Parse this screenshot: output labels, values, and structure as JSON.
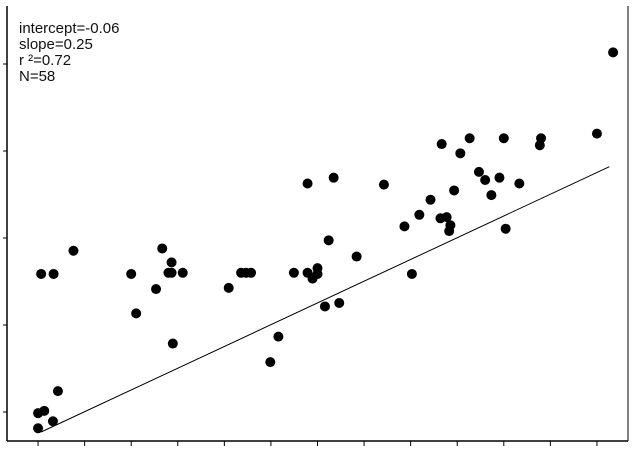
{
  "chart_data": {
    "type": "scatter",
    "title": "",
    "xlabel": "",
    "ylabel": "",
    "xlim": [
      0,
      10
    ],
    "ylim": [
      0,
      3.75
    ],
    "grid": false,
    "annotations": {
      "intercept": "intercept=-0.06",
      "slope": "slope=0.25",
      "r2": "r ²=0.72",
      "n": "N=58"
    },
    "fit": {
      "intercept": -0.06,
      "slope": 0.25,
      "x_range": [
        0.55,
        9.7
      ]
    },
    "points": [
      [
        0.75,
        1.44
      ],
      [
        1.07,
        1.64
      ],
      [
        0.6,
        0.26
      ],
      [
        0.5,
        0.11
      ],
      [
        0.5,
        0.24
      ],
      [
        0.74,
        0.17
      ],
      [
        0.82,
        0.43
      ],
      [
        0.55,
        1.44
      ],
      [
        2.0,
        1.44
      ],
      [
        2.08,
        1.1
      ],
      [
        2.4,
        1.31
      ],
      [
        2.5,
        1.66
      ],
      [
        2.6,
        1.45
      ],
      [
        2.65,
        1.54
      ],
      [
        2.65,
        1.45
      ],
      [
        2.83,
        1.45
      ],
      [
        2.67,
        0.84
      ],
      [
        3.57,
        1.32
      ],
      [
        3.77,
        1.45
      ],
      [
        3.85,
        1.45
      ],
      [
        3.93,
        1.45
      ],
      [
        4.24,
        0.68
      ],
      [
        4.37,
        0.9
      ],
      [
        4.62,
        1.45
      ],
      [
        4.84,
        1.45
      ],
      [
        4.92,
        1.4
      ],
      [
        5.0,
        1.44
      ],
      [
        5.12,
        1.16
      ],
      [
        5.0,
        1.49
      ],
      [
        5.18,
        1.73
      ],
      [
        5.35,
        1.19
      ],
      [
        5.63,
        1.59
      ],
      [
        4.84,
        2.22
      ],
      [
        5.26,
        2.27
      ],
      [
        6.07,
        2.21
      ],
      [
        6.4,
        1.85
      ],
      [
        6.64,
        1.95
      ],
      [
        6.52,
        1.44
      ],
      [
        6.82,
        2.08
      ],
      [
        6.98,
        1.92
      ],
      [
        7.08,
        1.93
      ],
      [
        7.14,
        1.86
      ],
      [
        7.12,
        1.81
      ],
      [
        7.0,
        2.56
      ],
      [
        7.2,
        2.16
      ],
      [
        7.3,
        2.48
      ],
      [
        7.45,
        2.61
      ],
      [
        7.6,
        2.32
      ],
      [
        7.7,
        2.25
      ],
      [
        7.8,
        2.12
      ],
      [
        7.93,
        2.27
      ],
      [
        8.25,
        2.22
      ],
      [
        8.0,
        2.61
      ],
      [
        8.03,
        1.83
      ],
      [
        8.58,
        2.55
      ],
      [
        8.6,
        2.61
      ],
      [
        9.5,
        2.65
      ],
      [
        9.76,
        3.35
      ]
    ]
  }
}
